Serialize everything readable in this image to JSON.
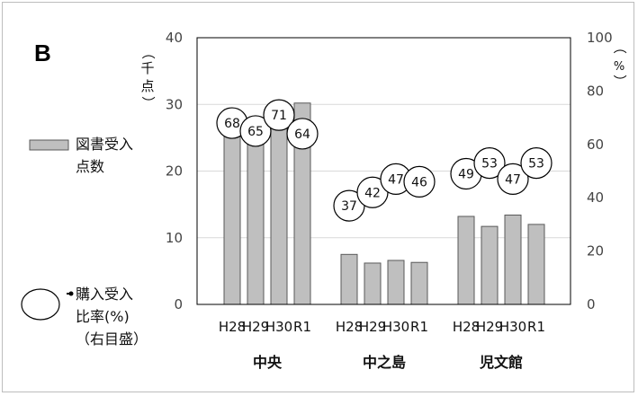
{
  "panel_label": "B",
  "chart_data": {
    "type": "bar",
    "groups": [
      "中央",
      "中之島",
      "児文館"
    ],
    "categories": [
      "H28",
      "H29",
      "H30",
      "R1"
    ],
    "series": [
      {
        "name": "図書受入点数",
        "axis": "left",
        "type": "bar",
        "values": [
          [
            26.5,
            27.5,
            29.5,
            30.2
          ],
          [
            7.5,
            6.2,
            6.6,
            6.3
          ],
          [
            13.2,
            11.7,
            13.4,
            12.0
          ]
        ]
      },
      {
        "name": "購入受入比率(%)(右目盛)",
        "axis": "right",
        "type": "marker",
        "values": [
          [
            68,
            65,
            71,
            64
          ],
          [
            37,
            42,
            47,
            46
          ],
          [
            49,
            53,
            47,
            53
          ]
        ]
      }
    ],
    "left_axis": {
      "label": "（千点）",
      "min": 0,
      "max": 40,
      "ticks": [
        0,
        10,
        20,
        30,
        40
      ]
    },
    "right_axis": {
      "label": "（%）",
      "min": 0,
      "max": 100,
      "ticks": [
        0,
        20,
        40,
        60,
        80,
        100
      ]
    },
    "grid": true,
    "legend_position": "left",
    "colors": {
      "bar": "#bfbfbf",
      "bar_stroke": "#595959",
      "grid": "#d9d9d9",
      "marker_fill": "#ffffff",
      "marker_stroke": "#000000"
    }
  },
  "legend": {
    "bar_label_line1": "図書受入",
    "bar_label_line2": "点数",
    "marker_label_line1": "購入受入",
    "marker_label_line2": "比率(%)",
    "marker_label_line3": "（右目盛）"
  },
  "axis_text": {
    "left_label_parts": [
      "（",
      "千",
      "点",
      "）"
    ],
    "right_label_parts": [
      "（",
      "%",
      "）"
    ]
  }
}
